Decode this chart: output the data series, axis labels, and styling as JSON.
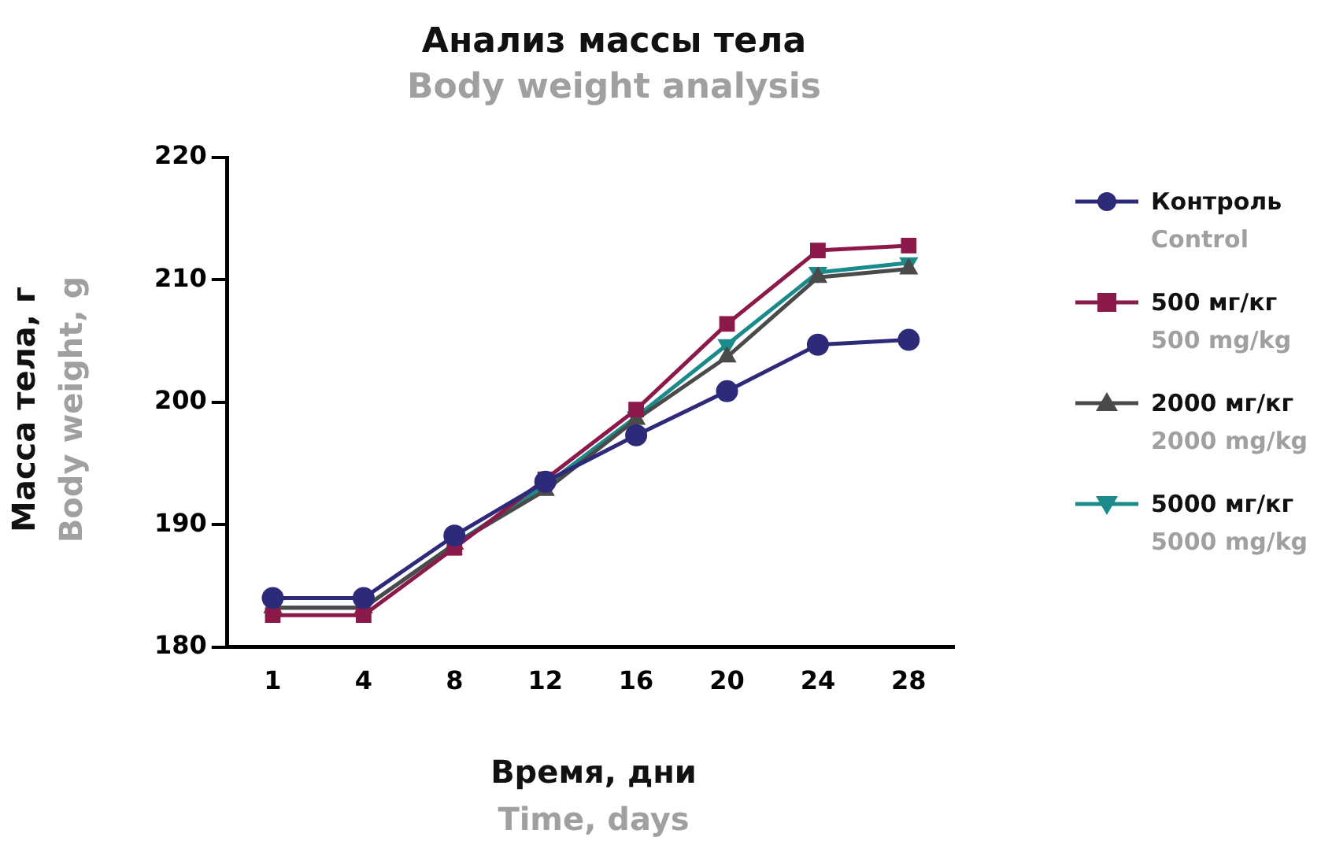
{
  "chart_data": {
    "type": "line",
    "title": "Анализ массы тела",
    "subtitle": "Body weight analysis",
    "xlabel": "Время, дни\nTime, days",
    "ylabel": "Масса тела, г\nBody weight, g",
    "categories": [
      "1",
      "4",
      "8",
      "12",
      "16",
      "20",
      "24",
      "28"
    ],
    "series": [
      {
        "name": "Контроль\nControl",
        "color": "#2e2a7a",
        "marker": "circle",
        "values": [
          184.0,
          184.0,
          189.1,
          193.5,
          197.3,
          200.9,
          204.7,
          205.1
        ]
      },
      {
        "name": "500 мг/кг\n500 mg/kg",
        "color": "#8b1a4a",
        "marker": "square",
        "values": [
          182.6,
          182.6,
          188.1,
          193.7,
          199.4,
          206.4,
          212.4,
          212.8
        ]
      },
      {
        "name": "2000 мг/кг\n2000 mg/kg",
        "color": "#4a4a4a",
        "marker": "triangle",
        "values": [
          183.2,
          183.2,
          188.4,
          192.8,
          198.6,
          203.7,
          210.2,
          210.9
        ]
      },
      {
        "name": "5000 мг/кг\n5000 mg/kg",
        "color": "#1a8a8a",
        "marker": "triangle-down",
        "values": [
          183.2,
          183.2,
          188.4,
          193.2,
          198.8,
          204.7,
          210.6,
          211.4
        ]
      }
    ],
    "ylim": [
      180,
      220
    ],
    "yticks": [
      180,
      190,
      200,
      210,
      220
    ],
    "grid": false,
    "legend": "right",
    "line_style": "solid"
  }
}
